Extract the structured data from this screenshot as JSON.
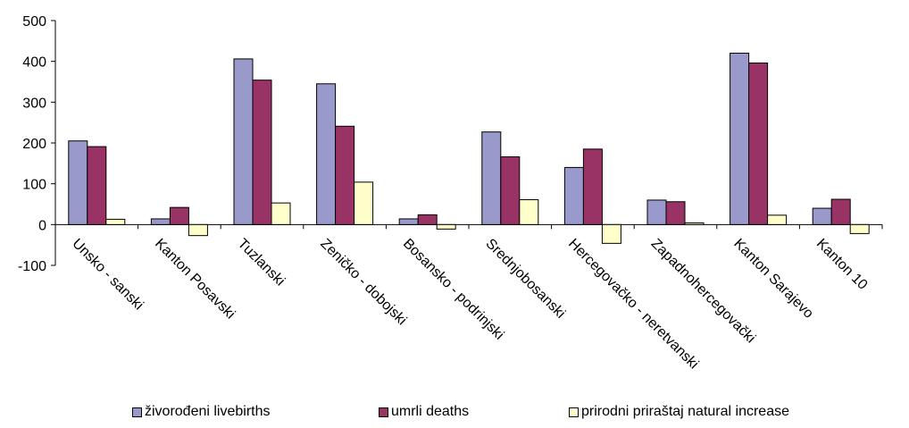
{
  "chart_data": {
    "type": "bar",
    "categories": [
      "Unsko - sanski",
      "Kanton Posavski",
      "Tuzlanski",
      "Zeničko - dobojski",
      "Bosansko - podrinjski",
      "Srednjobosanski",
      "Hercegovačko - neretvanski",
      "Zapadnohercegovački",
      "Kanton Sarajevo",
      "Kanton 10"
    ],
    "series": [
      {
        "name": "živorođeni livebirths",
        "color": "#9999cc",
        "values": [
          205,
          14,
          406,
          345,
          14,
          227,
          140,
          60,
          420,
          40
        ]
      },
      {
        "name": "umrli deaths",
        "color": "#993366",
        "values": [
          191,
          42,
          354,
          241,
          24,
          166,
          185,
          56,
          396,
          62
        ]
      },
      {
        "name": "prirodni priraštaj natural increase",
        "color": "#ffffcc",
        "values": [
          13,
          -27,
          53,
          104,
          -11,
          61,
          -46,
          4,
          23,
          -22
        ]
      }
    ],
    "yticks": [
      "500",
      "400",
      "300",
      "200",
      "100",
      "0",
      "-100"
    ],
    "ylim": [
      -100,
      500
    ],
    "grid": false,
    "legend_position": "bottom"
  }
}
